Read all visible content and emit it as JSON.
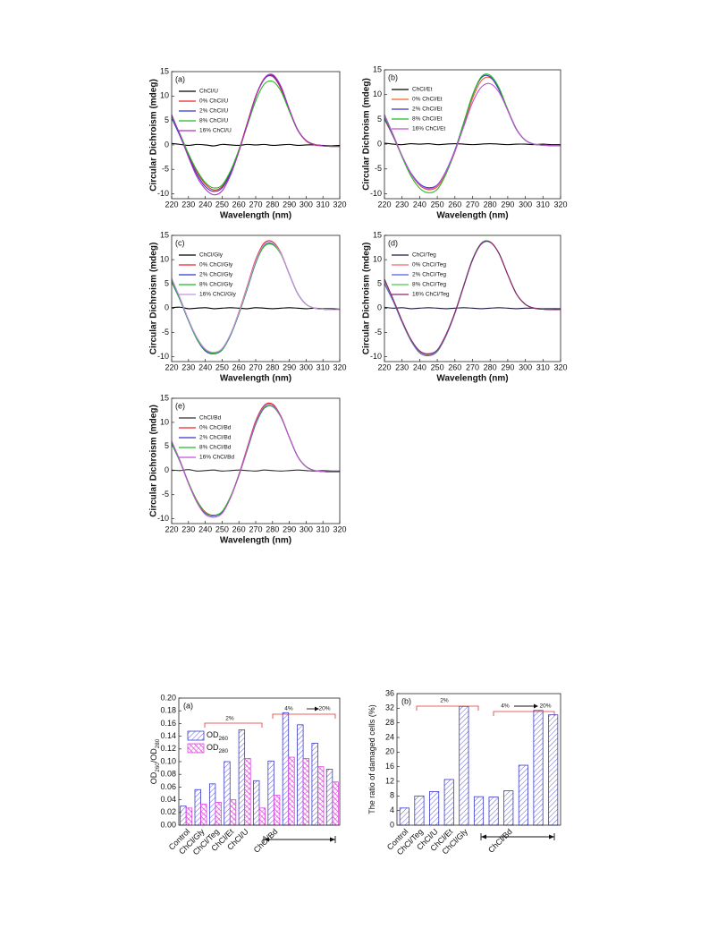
{
  "chart_data": [
    {
      "type": "line",
      "panel_label": "(a)",
      "x_label": "Wavelength (nm)",
      "y_label": "Circular Dichroism (mdeg)",
      "legend": "upper left",
      "x": [
        220,
        225,
        230,
        235,
        240,
        245,
        250,
        255,
        260,
        265,
        270,
        275,
        280,
        285,
        290,
        295,
        300,
        305,
        310,
        315,
        320
      ],
      "xlim": [
        220,
        320
      ],
      "xticks": [
        220,
        230,
        240,
        250,
        260,
        270,
        280,
        290,
        300,
        310,
        320
      ],
      "ylim": [
        -11,
        15
      ],
      "yticks": [
        -10,
        -5,
        0,
        5,
        10,
        15
      ],
      "series": [
        {
          "name": "ChCl/U",
          "color": "#000000",
          "values": [
            0.3,
            0.1,
            -0.1,
            0.1,
            0,
            -0.2,
            0.1,
            0,
            -0.1,
            0.1,
            0,
            0.1,
            -0.1,
            0,
            0.1,
            -0.1,
            0,
            0,
            -0.1,
            -0.2,
            -0.1
          ]
        },
        {
          "name": "0% ChCl/U",
          "color": "#e8262b",
          "values": [
            6,
            2,
            -2,
            -5.5,
            -8,
            -9.2,
            -8.5,
            -5.5,
            -1,
            4.5,
            10,
            13.5,
            14,
            11.5,
            7,
            3,
            0.8,
            0,
            -0.2,
            -0.3,
            -0.3
          ]
        },
        {
          "name": "2% ChCl/U",
          "color": "#3333cc",
          "values": [
            5.5,
            1.8,
            -2.3,
            -6,
            -8.5,
            -9.5,
            -8.8,
            -5.8,
            -1.2,
            4.3,
            9.8,
            13.4,
            14.2,
            11.8,
            7.2,
            3.1,
            0.9,
            0.1,
            -0.2,
            -0.3,
            -0.3
          ]
        },
        {
          "name": "8% ChCl/U",
          "color": "#22bb22",
          "values": [
            5.8,
            2.2,
            -1.8,
            -5.2,
            -7.7,
            -8.8,
            -8.2,
            -5.3,
            -1,
            4,
            9,
            12.4,
            13,
            11,
            6.9,
            3,
            0.9,
            0.1,
            -0.2,
            -0.3,
            -0.3
          ]
        },
        {
          "name": "16% ChCl/U",
          "color": "#b030c0",
          "values": [
            6.2,
            2,
            -2.5,
            -6.5,
            -9,
            -10.2,
            -9.4,
            -6.2,
            -1.4,
            4.2,
            9.8,
            13.6,
            14.4,
            12,
            7.3,
            3.1,
            0.9,
            0.1,
            -0.2,
            -0.3,
            -0.3
          ]
        }
      ]
    },
    {
      "type": "line",
      "panel_label": "(b)",
      "x_label": "Wavelength (nm)",
      "y_label": "Circular Dichroism (mdeg)",
      "legend": "upper left",
      "x": [
        220,
        225,
        230,
        235,
        240,
        245,
        250,
        255,
        260,
        265,
        270,
        275,
        280,
        285,
        290,
        295,
        300,
        305,
        310,
        315,
        320
      ],
      "xlim": [
        220,
        320
      ],
      "xticks": [
        220,
        230,
        240,
        250,
        260,
        270,
        280,
        290,
        300,
        310,
        320
      ],
      "ylim": [
        -11,
        15
      ],
      "yticks": [
        -10,
        -5,
        0,
        5,
        10,
        15
      ],
      "series": [
        {
          "name": "ChCl/Et",
          "color": "#000000",
          "values": [
            0.2,
            0,
            -0.1,
            0.1,
            0,
            0.1,
            -0.1,
            0,
            0.1,
            0,
            -0.1,
            0,
            0.1,
            0,
            -0.1,
            0,
            0,
            -0.1,
            0,
            -0.1,
            -0.1
          ]
        },
        {
          "name": "0% ChCl/Et",
          "color": "#f0602a",
          "values": [
            5,
            1.5,
            -2.5,
            -6,
            -8.3,
            -9.2,
            -8.6,
            -5.8,
            -1.6,
            3.8,
            9.2,
            12.8,
            13.4,
            11.2,
            7,
            3,
            0.8,
            0,
            -0.2,
            -0.3,
            -0.3
          ]
        },
        {
          "name": "2% ChCl/Et",
          "color": "#3333cc",
          "values": [
            5.2,
            1.6,
            -2.4,
            -5.8,
            -8,
            -8.8,
            -8.2,
            -5.4,
            -1.2,
            4.3,
            9.8,
            13.4,
            13.6,
            11,
            6.8,
            2.9,
            0.8,
            0,
            -0.2,
            -0.3,
            -0.3
          ]
        },
        {
          "name": "8% ChCl/Et",
          "color": "#22bb22",
          "values": [
            5.5,
            1.8,
            -2.6,
            -6.4,
            -8.9,
            -9.8,
            -9.1,
            -6,
            -1.4,
            4.3,
            9.9,
            13.6,
            13.9,
            11.4,
            7,
            3,
            0.8,
            0,
            -0.2,
            -0.3,
            -0.3
          ]
        },
        {
          "name": "16% ChCl/Et",
          "color": "#c050d8",
          "values": [
            6,
            1.9,
            -2.3,
            -5.9,
            -8.2,
            -9,
            -8.3,
            -5.5,
            -1.4,
            3.5,
            8.4,
            11.5,
            12.2,
            10.5,
            6.8,
            3,
            0.8,
            0,
            -0.2,
            -0.3,
            -0.3
          ]
        }
      ]
    },
    {
      "type": "line",
      "panel_label": "(c)",
      "x_label": "Wavelength (nm)",
      "y_label": "Circular Dichroism (mdeg)",
      "legend": "upper left",
      "x": [
        220,
        225,
        230,
        235,
        240,
        245,
        250,
        255,
        260,
        265,
        270,
        275,
        280,
        285,
        290,
        295,
        300,
        305,
        310,
        315,
        320
      ],
      "xlim": [
        220,
        320
      ],
      "xticks": [
        220,
        230,
        240,
        250,
        260,
        270,
        280,
        290,
        300,
        310,
        320
      ],
      "ylim": [
        -11,
        15
      ],
      "yticks": [
        -10,
        -5,
        0,
        5,
        10,
        15
      ],
      "series": [
        {
          "name": "ChCl/Gly",
          "color": "#000000",
          "values": [
            0.1,
            0.2,
            -0.1,
            0,
            0.1,
            -0.1,
            0,
            0.1,
            0,
            -0.1,
            0.1,
            0,
            -0.1,
            0,
            0.1,
            0,
            -0.1,
            0,
            -0.1,
            -0.1,
            -0.2
          ]
        },
        {
          "name": "0% ChCl/Gly",
          "color": "#e8262b",
          "values": [
            6,
            2,
            -2.4,
            -6.2,
            -8.5,
            -9.2,
            -8.4,
            -5.4,
            -0.8,
            4.6,
            10,
            13.4,
            13.7,
            11.4,
            7,
            3,
            0.8,
            0,
            -0.2,
            -0.3,
            -0.3
          ]
        },
        {
          "name": "2% ChCl/Gly",
          "color": "#3333cc",
          "values": [
            5.4,
            1.7,
            -2.6,
            -6.4,
            -8.8,
            -9.4,
            -8.6,
            -5.6,
            -1.2,
            4,
            9.3,
            12.8,
            13.2,
            11.2,
            7,
            3,
            0.8,
            0,
            -0.2,
            -0.3,
            -0.3
          ]
        },
        {
          "name": "8% ChCl/Gly",
          "color": "#22bb22",
          "values": [
            5.6,
            1.8,
            -2.5,
            -6.3,
            -8.6,
            -9.3,
            -8.5,
            -5.5,
            -1.1,
            4.1,
            9.4,
            12.7,
            13.1,
            11.1,
            7,
            3,
            0.8,
            0,
            -0.2,
            -0.3,
            -0.3
          ]
        },
        {
          "name": "16% ChCl/Gly",
          "color": "#c890e8",
          "values": [
            6.2,
            2.1,
            -2.3,
            -6,
            -8.4,
            -9.1,
            -8.3,
            -5.3,
            -0.9,
            4.4,
            9.7,
            13.1,
            13.4,
            11.3,
            7,
            3,
            0.8,
            0,
            -0.2,
            -0.3,
            -0.3
          ]
        }
      ]
    },
    {
      "type": "line",
      "panel_label": "(d)",
      "x_label": "Wavelength (nm)",
      "y_label": "Circular Dichroism (mdeg)",
      "legend": "upper left",
      "x": [
        220,
        225,
        230,
        235,
        240,
        245,
        250,
        255,
        260,
        265,
        270,
        275,
        280,
        285,
        290,
        295,
        300,
        305,
        310,
        315,
        320
      ],
      "xlim": [
        220,
        320
      ],
      "xticks": [
        220,
        230,
        240,
        250,
        260,
        270,
        280,
        290,
        300,
        310,
        320
      ],
      "ylim": [
        -11,
        15
      ],
      "yticks": [
        -10,
        -5,
        0,
        5,
        10,
        15
      ],
      "series": [
        {
          "name": "ChCl/Teg",
          "color": "#1a1a40",
          "values": [
            0.2,
            0,
            0.1,
            -0.1,
            0,
            0.1,
            0,
            -0.1,
            0,
            0.1,
            0,
            -0.1,
            0,
            0.1,
            0,
            -0.1,
            0,
            0,
            -0.1,
            -0.1,
            -0.1
          ]
        },
        {
          "name": "0% ChCl/Teg",
          "color": "#f06a6a",
          "values": [
            5.5,
            1.6,
            -2.8,
            -6.6,
            -9,
            -9.6,
            -8.8,
            -5.6,
            -1,
            4.6,
            10,
            13.3,
            13.7,
            11.3,
            6.9,
            2.9,
            0.8,
            0,
            -0.2,
            -0.3,
            -0.3
          ]
        },
        {
          "name": "2% ChCl/Teg",
          "color": "#5a5ae0",
          "values": [
            5,
            1.4,
            -2.9,
            -6.7,
            -9.2,
            -9.8,
            -8.9,
            -5.7,
            -1.1,
            4.5,
            9.9,
            13.2,
            13.6,
            11.3,
            6.9,
            2.9,
            0.8,
            0,
            -0.2,
            -0.3,
            -0.3
          ]
        },
        {
          "name": "8% ChCl/Teg",
          "color": "#50c850",
          "values": [
            5.7,
            1.7,
            -2.7,
            -6.5,
            -8.9,
            -9.5,
            -8.7,
            -5.5,
            -0.9,
            4.7,
            10.1,
            13.4,
            13.7,
            11.3,
            6.9,
            2.9,
            0.8,
            0,
            -0.2,
            -0.3,
            -0.3
          ]
        },
        {
          "name": "16% ChCl/Teg",
          "color": "#902070",
          "values": [
            6,
            1.8,
            -2.6,
            -6.4,
            -8.8,
            -9.4,
            -8.6,
            -5.4,
            -0.9,
            4.6,
            10,
            13.3,
            13.6,
            11.3,
            6.9,
            2.9,
            0.8,
            0,
            -0.2,
            -0.3,
            -0.3
          ]
        }
      ]
    },
    {
      "type": "line",
      "panel_label": "(e)",
      "x_label": "Wavelength (nm)",
      "y_label": "Circular Dichroism (mdeg)",
      "legend": "upper left",
      "x": [
        220,
        225,
        230,
        235,
        240,
        245,
        250,
        255,
        260,
        265,
        270,
        275,
        280,
        285,
        290,
        295,
        300,
        305,
        310,
        315,
        320
      ],
      "xlim": [
        220,
        320
      ],
      "xticks": [
        220,
        230,
        240,
        250,
        260,
        270,
        280,
        290,
        300,
        310,
        320
      ],
      "ylim": [
        -11,
        15
      ],
      "yticks": [
        -10,
        -5,
        0,
        5,
        10,
        15
      ],
      "series": [
        {
          "name": "ChCl/Bd",
          "color": "#303030",
          "values": [
            0.1,
            0,
            0.2,
            -0.1,
            0,
            0.1,
            -0.1,
            0,
            0.1,
            0,
            -0.1,
            0.1,
            0,
            -0.1,
            0,
            0.1,
            0,
            -0.1,
            0,
            -0.1,
            -0.1
          ]
        },
        {
          "name": "0% ChCl/Bd",
          "color": "#e8262b",
          "values": [
            6,
            2,
            -2.5,
            -6.2,
            -8.6,
            -9.3,
            -8.6,
            -5.5,
            -0.8,
            4.8,
            10.3,
            13.5,
            13.8,
            11.3,
            6.9,
            2.9,
            0.8,
            0,
            -0.2,
            -0.3,
            -0.3
          ]
        },
        {
          "name": "2% ChCl/Bd",
          "color": "#3333cc",
          "values": [
            5.6,
            1.8,
            -2.6,
            -6.4,
            -8.8,
            -9.4,
            -8.6,
            -5.5,
            -1,
            4.3,
            9.6,
            12.9,
            13.3,
            11.1,
            6.9,
            2.9,
            0.8,
            0,
            -0.2,
            -0.3,
            -0.3
          ]
        },
        {
          "name": "8% ChCl/Bd",
          "color": "#22bb22",
          "values": [
            5.7,
            1.8,
            -2.5,
            -6.3,
            -8.7,
            -9.3,
            -8.5,
            -5.4,
            -1,
            4.4,
            9.7,
            13,
            13.3,
            11.1,
            6.9,
            2.9,
            0.8,
            0,
            -0.2,
            -0.3,
            -0.3
          ]
        },
        {
          "name": "16% ChCl/Bd",
          "color": "#c050d8",
          "values": [
            6.1,
            2,
            -2.7,
            -6.6,
            -9.1,
            -9.7,
            -8.9,
            -5.7,
            -1,
            4.6,
            10,
            13.3,
            13.6,
            11.2,
            6.9,
            2.9,
            0.8,
            0,
            -0.2,
            -0.3,
            -0.3
          ]
        }
      ]
    },
    {
      "type": "bar",
      "panel_label": "(a)",
      "y_label": "OD260/OD280",
      "legend": "upper left",
      "categories": [
        "Control",
        "ChCl/Gly",
        "ChCl/Teg",
        "ChCl/Et",
        "ChCl/U",
        null,
        "ChCl/Bd",
        null,
        null,
        null,
        null
      ],
      "ylim": [
        0,
        0.2
      ],
      "yticks": [
        {
          "value": 0,
          "label": "0.00"
        },
        {
          "value": 0.02,
          "label": "0.02"
        },
        {
          "value": 0.04,
          "label": "0.04"
        },
        {
          "value": 0.06,
          "label": "0.06"
        },
        {
          "value": 0.08,
          "label": "0.08"
        },
        {
          "value": 0.1,
          "label": "0.10"
        },
        {
          "value": 0.12,
          "label": "0.12"
        },
        {
          "value": 0.14,
          "label": "0.14"
        },
        {
          "value": 0.16,
          "label": "0.16"
        },
        {
          "value": 0.18,
          "label": "0.18"
        },
        {
          "value": 0.2,
          "label": "0.20"
        }
      ],
      "annotations": [
        "2%",
        "4%",
        "20%"
      ],
      "series": [
        {
          "name": "OD260",
          "color": "#3a3acc",
          "hatch": "diagonal",
          "values": [
            0.03,
            0.056,
            0.065,
            0.1,
            0.15,
            0.07,
            0.101,
            0.177,
            0.158,
            0.129,
            0.088
          ]
        },
        {
          "name": "OD280",
          "color": "#e040e0",
          "hatch": "cross",
          "values": [
            0.027,
            0.033,
            0.036,
            0.04,
            0.105,
            0.027,
            0.047,
            0.107,
            0.105,
            0.092,
            0.068
          ]
        }
      ]
    },
    {
      "type": "bar",
      "panel_label": "(b)",
      "y_label": "The ratio of damaged cells (%)",
      "categories": [
        "Control",
        "ChCl/Teg",
        "ChCl/U",
        "ChCl/Et",
        "ChCl/Gly",
        null,
        null,
        "ChCl/Bd",
        null,
        null,
        null
      ],
      "ylim": [
        0,
        36
      ],
      "yticks": [
        0,
        4,
        8,
        12,
        16,
        20,
        24,
        28,
        32,
        36
      ],
      "annotations": [
        "2%",
        "4%",
        "20%"
      ],
      "series": [
        {
          "color": "#3a3acc",
          "hatch": "diagonal",
          "values": [
            4.7,
            8,
            9.2,
            12.5,
            32.5,
            7.8,
            7.7,
            9.4,
            16.4,
            31.4,
            30.2
          ]
        }
      ]
    }
  ]
}
